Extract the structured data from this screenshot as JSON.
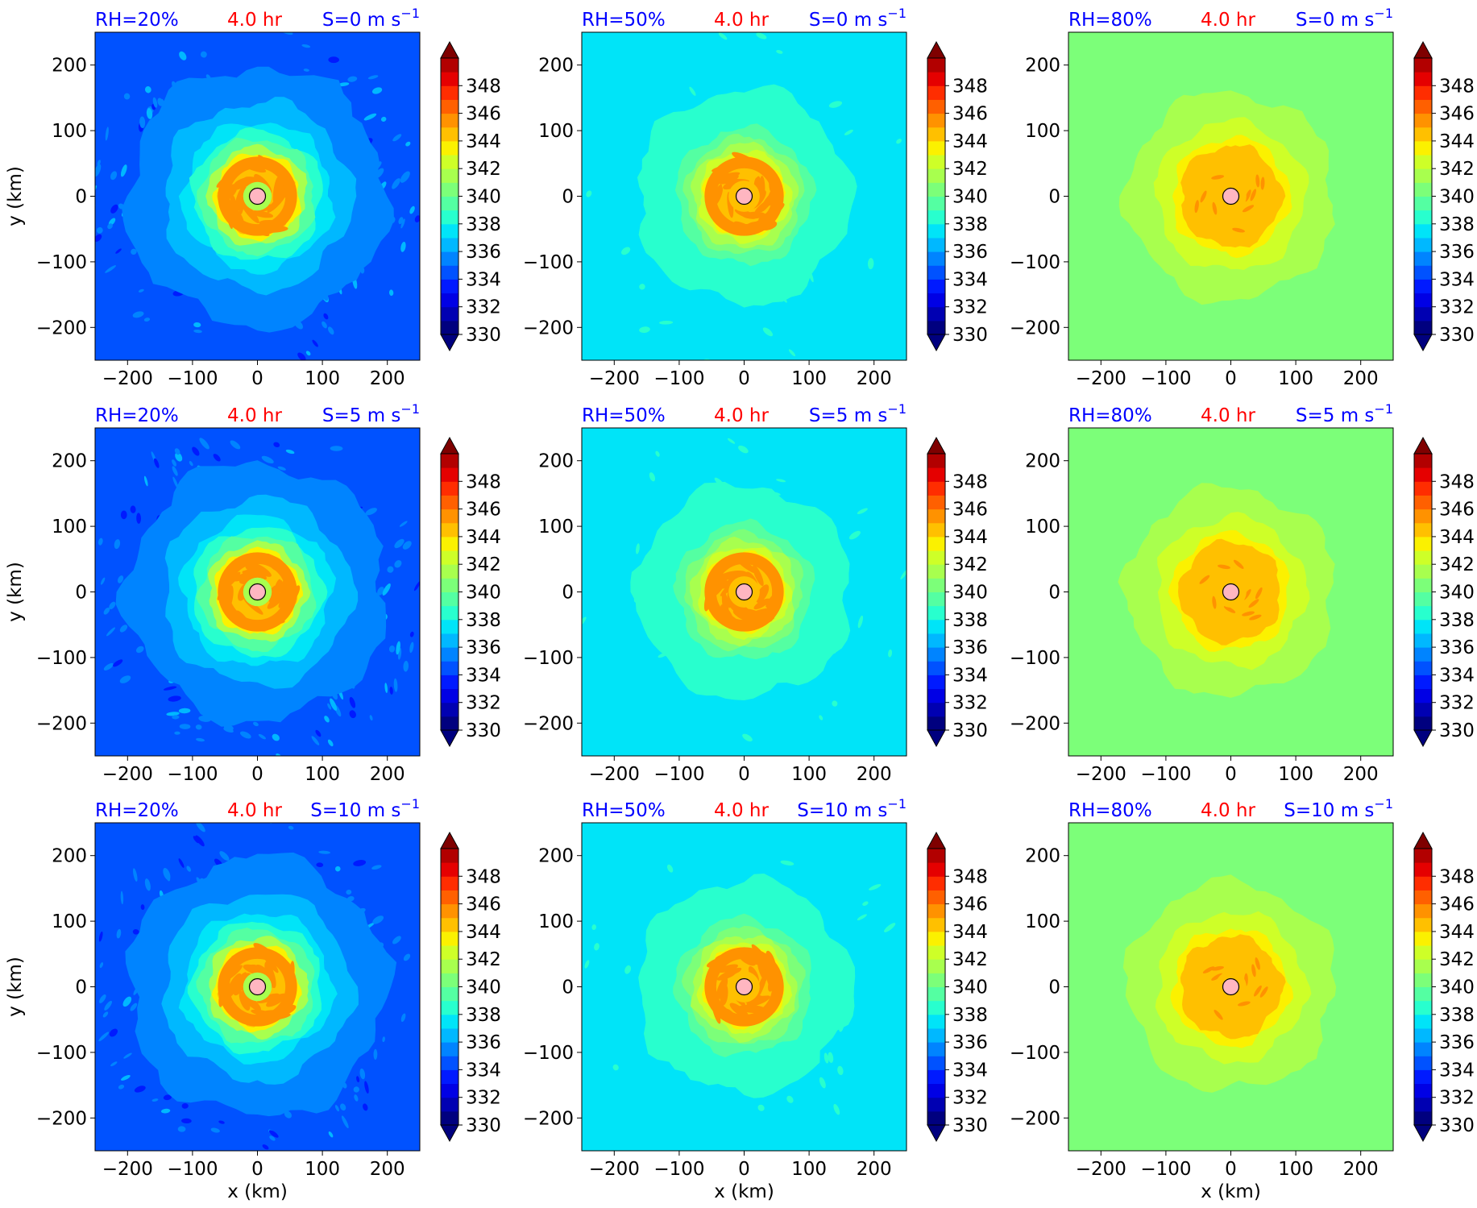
{
  "chart_data": {
    "type": "heatmap",
    "layout": {
      "rows": 3,
      "cols": 3
    },
    "time_label": "4.0 hr",
    "xlabel": "x (km)",
    "ylabel": "y (km)",
    "xlim": [
      -250,
      250
    ],
    "ylim": [
      -250,
      250
    ],
    "xticks": [
      -200,
      -100,
      0,
      100,
      200
    ],
    "yticks": [
      -200,
      -100,
      0,
      100,
      200
    ],
    "tick_labels": [
      "−200",
      "−100",
      "0",
      "100",
      "200"
    ],
    "colorbar": {
      "levels": [
        330,
        331,
        332,
        333,
        334,
        335,
        336,
        337,
        338,
        339,
        340,
        341,
        342,
        343,
        344,
        345,
        346,
        347,
        348,
        349,
        350
      ],
      "ticks": [
        330,
        332,
        334,
        336,
        338,
        340,
        342,
        344,
        346,
        348
      ],
      "extend": "both",
      "colors": [
        "#00007f",
        "#0000b2",
        "#0000e5",
        "#001aff",
        "#0052ff",
        "#0084ff",
        "#00b8ff",
        "#00e4f8",
        "#28ffce",
        "#54ffa2",
        "#7cff79",
        "#a8ff4e",
        "#ceff28",
        "#fbf100",
        "#ffc000",
        "#ff9200",
        "#ff6000",
        "#ff2d00",
        "#e50000",
        "#b20000"
      ],
      "under_color": "#00007f",
      "over_color": "#7f0000"
    },
    "panel_colors": {
      "RH=20%": {
        "background": "#0052ff",
        "rings": [
          [
            200,
            "#0084ff"
          ],
          [
            145,
            "#00b8ff"
          ],
          [
            115,
            "#00e4f8"
          ],
          [
            100,
            "#28ffce"
          ],
          [
            88,
            "#54ffa2"
          ],
          [
            76,
            "#a8ff4e"
          ],
          [
            66,
            "#fbf100"
          ],
          [
            58,
            "#ffc000"
          ]
        ],
        "band": "#ff9200",
        "eye": "#a8ff4e"
      },
      "RH=50%": {
        "background": "#00e4f8",
        "rings": [
          [
            165,
            "#28ffce"
          ],
          [
            105,
            "#54ffa2"
          ],
          [
            90,
            "#7cff79"
          ],
          [
            80,
            "#a8ff4e"
          ],
          [
            70,
            "#ceff28"
          ],
          [
            62,
            "#fbf100"
          ],
          [
            55,
            "#ffc000"
          ]
        ],
        "band": "#ff9200",
        "eye": "#ffc000"
      },
      "RH=80%": {
        "background": "#7cff79",
        "rings": [
          [
            160,
            "#a8ff4e"
          ],
          [
            115,
            "#ceff28"
          ],
          [
            90,
            "#fbf100"
          ],
          [
            78,
            "#ffc000"
          ]
        ],
        "band": "#ff9200",
        "eye": "#ffc000"
      }
    },
    "panels": [
      {
        "rh": "RH=20%",
        "time": "4.0 hr",
        "shear": "S=0 m s",
        "shear_exp": "−1"
      },
      {
        "rh": "RH=50%",
        "time": "4.0 hr",
        "shear": "S=0 m s",
        "shear_exp": "−1"
      },
      {
        "rh": "RH=80%",
        "time": "4.0 hr",
        "shear": "S=0 m s",
        "shear_exp": "−1"
      },
      {
        "rh": "RH=20%",
        "time": "4.0 hr",
        "shear": "S=5 m s",
        "shear_exp": "−1"
      },
      {
        "rh": "RH=50%",
        "time": "4.0 hr",
        "shear": "S=5 m s",
        "shear_exp": "−1"
      },
      {
        "rh": "RH=80%",
        "time": "4.0 hr",
        "shear": "S=5 m s",
        "shear_exp": "−1"
      },
      {
        "rh": "RH=20%",
        "time": "4.0 hr",
        "shear": "S=10 m s",
        "shear_exp": "−1"
      },
      {
        "rh": "RH=50%",
        "time": "4.0 hr",
        "shear": "S=10 m s",
        "shear_exp": "−1"
      },
      {
        "rh": "RH=80%",
        "time": "4.0 hr",
        "shear": "S=10 m s",
        "shear_exp": "−1"
      }
    ],
    "center_marker": {
      "x": 0,
      "y": 0,
      "color": "#ffb6c1"
    },
    "label_colors": {
      "rh": "#0000ff",
      "time": "#ff0000",
      "shear": "#0000ff"
    }
  }
}
